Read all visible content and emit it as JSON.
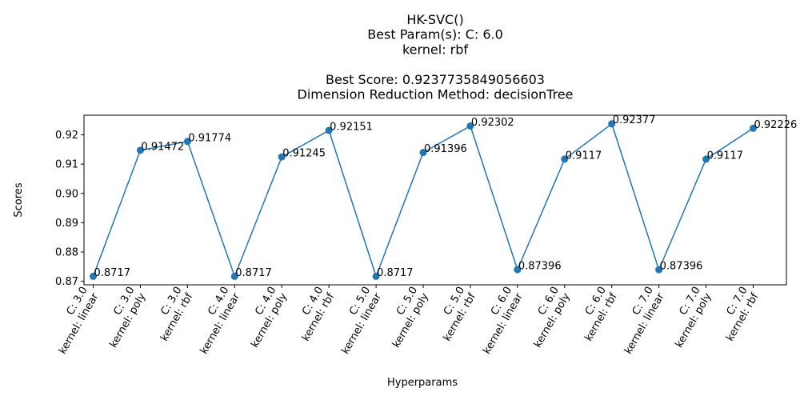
{
  "chart_data": {
    "type": "line",
    "title_lines": [
      "HK-SVC()",
      "Best Param(s): C: 6.0",
      "kernel: rbf",
      "",
      "Best Score: 0.9237735849056603",
      "Dimension Reduction Method: decisionTree"
    ],
    "xlabel": "Hyperparams",
    "ylabel": "Scores",
    "categories": [
      [
        "C: 3.0",
        "kernel: linear"
      ],
      [
        "C: 3.0",
        "kernel: poly"
      ],
      [
        "C: 3.0",
        "kernel: rbf"
      ],
      [
        "C: 4.0",
        "kernel: linear"
      ],
      [
        "C: 4.0",
        "kernel: poly"
      ],
      [
        "C: 4.0",
        "kernel: rbf"
      ],
      [
        "C: 5.0",
        "kernel: linear"
      ],
      [
        "C: 5.0",
        "kernel: poly"
      ],
      [
        "C: 5.0",
        "kernel: rbf"
      ],
      [
        "C: 6.0",
        "kernel: linear"
      ],
      [
        "C: 6.0",
        "kernel: poly"
      ],
      [
        "C: 6.0",
        "kernel: rbf"
      ],
      [
        "C: 7.0",
        "kernel: linear"
      ],
      [
        "C: 7.0",
        "kernel: poly"
      ],
      [
        "C: 7.0",
        "kernel: rbf"
      ]
    ],
    "values": [
      0.8717,
      0.91472,
      0.91774,
      0.8717,
      0.91245,
      0.92151,
      0.8717,
      0.91396,
      0.92302,
      0.87396,
      0.9117,
      0.92377,
      0.87396,
      0.9117,
      0.92226
    ],
    "data_labels": [
      "0.8717",
      "0.91472",
      "0.91774",
      "0.8717",
      "0.91245",
      "0.92151",
      "0.8717",
      "0.91396",
      "0.92302",
      "0.87396",
      "0.9117",
      "0.92377",
      "0.87396",
      "0.9117",
      "0.92226"
    ],
    "yticks": [
      "0.87",
      "0.88",
      "0.89",
      "0.90",
      "0.91",
      "0.92"
    ],
    "ylim": [
      0.8688,
      0.9267
    ],
    "grid": false,
    "color": "#1f77b4"
  }
}
